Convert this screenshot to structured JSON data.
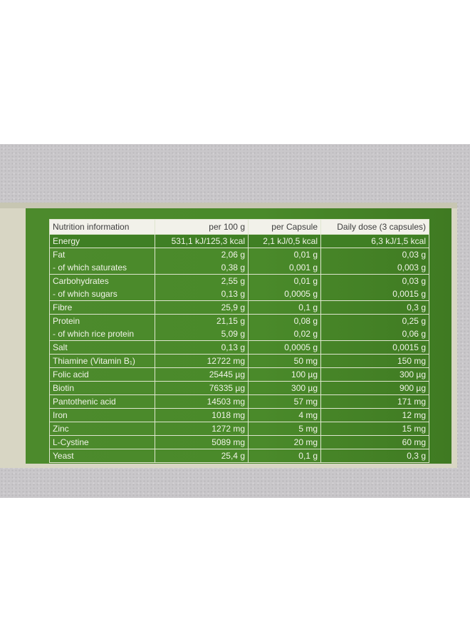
{
  "table": {
    "headers": [
      "Nutrition information",
      "per 100 g",
      "per Capsule",
      "Daily dose (3 capsules)"
    ],
    "rows": [
      {
        "label": [
          "Energy"
        ],
        "per100": [
          "531,1 kJ/125,3 kcal"
        ],
        "capsule": [
          "2,1 kJ/0,5 kcal"
        ],
        "daily": [
          "6,3 kJ/1,5 kcal"
        ]
      },
      {
        "label": [
          "Fat",
          "- of which saturates"
        ],
        "per100": [
          "2,06 g",
          "0,38 g"
        ],
        "capsule": [
          "0,01 g",
          "0,001 g"
        ],
        "daily": [
          "0,03 g",
          "0,003 g"
        ]
      },
      {
        "label": [
          "Carbohydrates",
          "- of which sugars"
        ],
        "per100": [
          "2,55 g",
          "0,13 g"
        ],
        "capsule": [
          "0,01 g",
          "0,0005 g"
        ],
        "daily": [
          "0,03 g",
          "0,0015 g"
        ]
      },
      {
        "label": [
          "Fibre"
        ],
        "per100": [
          "25,9 g"
        ],
        "capsule": [
          "0,1 g"
        ],
        "daily": [
          "0,3 g"
        ]
      },
      {
        "label": [
          "Protein",
          "- of which rice protein"
        ],
        "per100": [
          "21,15 g",
          "5,09 g"
        ],
        "capsule": [
          "0,08 g",
          "0,02 g"
        ],
        "daily": [
          "0,25 g",
          "0,06 g"
        ]
      },
      {
        "label": [
          "Salt"
        ],
        "per100": [
          "0,13 g"
        ],
        "capsule": [
          "0,0005 g"
        ],
        "daily": [
          "0,0015 g"
        ]
      },
      {
        "label": [
          "Thiamine (Vitamin B₁)"
        ],
        "per100": [
          "12722 mg"
        ],
        "capsule": [
          "50 mg"
        ],
        "daily": [
          "150 mg"
        ]
      },
      {
        "label": [
          "Folic acid"
        ],
        "per100": [
          "25445 µg"
        ],
        "capsule": [
          "100 µg"
        ],
        "daily": [
          "300 µg"
        ]
      },
      {
        "label": [
          "Biotin"
        ],
        "per100": [
          "76335 µg"
        ],
        "capsule": [
          "300 µg"
        ],
        "daily": [
          "900 µg"
        ]
      },
      {
        "label": [
          "Pantothenic acid"
        ],
        "per100": [
          "14503 mg"
        ],
        "capsule": [
          "57 mg"
        ],
        "daily": [
          "171 mg"
        ]
      },
      {
        "label": [
          "Iron"
        ],
        "per100": [
          "1018 mg"
        ],
        "capsule": [
          "4 mg"
        ],
        "daily": [
          "12 mg"
        ]
      },
      {
        "label": [
          "Zinc"
        ],
        "per100": [
          "1272 mg"
        ],
        "capsule": [
          "5 mg"
        ],
        "daily": [
          "15 mg"
        ]
      },
      {
        "label": [
          "L-Cystine"
        ],
        "per100": [
          "5089 mg"
        ],
        "capsule": [
          "20 mg"
        ],
        "daily": [
          "60 mg"
        ]
      },
      {
        "label": [
          "Yeast"
        ],
        "per100": [
          "25,4 g"
        ],
        "capsule": [
          "0,1 g"
        ],
        "daily": [
          "0,3 g"
        ]
      }
    ]
  },
  "colors": {
    "panel": "#4a8a2a",
    "header_bg": "#f2f1ea",
    "text": "#f1f4e8"
  }
}
